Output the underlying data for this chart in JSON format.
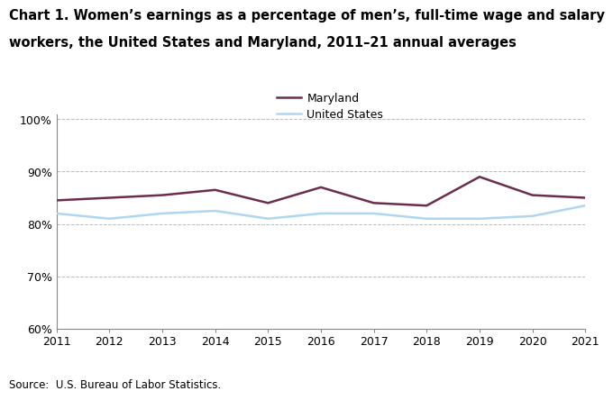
{
  "title_line1": "Chart 1. Women’s earnings as a percentage of men’s, full-time wage and salary",
  "title_line2": "workers, the United States and Maryland, 2011–21 annual averages",
  "years": [
    2011,
    2012,
    2013,
    2014,
    2015,
    2016,
    2017,
    2018,
    2019,
    2020,
    2021
  ],
  "maryland": [
    84.5,
    85.0,
    85.5,
    86.5,
    84.0,
    87.0,
    84.0,
    83.5,
    89.0,
    85.5,
    85.0
  ],
  "us": [
    82.0,
    81.0,
    82.0,
    82.5,
    81.0,
    82.0,
    82.0,
    81.0,
    81.0,
    81.5,
    83.5
  ],
  "maryland_color": "#6B2D4E",
  "us_color": "#AED6F1",
  "ylim": [
    60,
    101
  ],
  "yticks": [
    60,
    70,
    80,
    90,
    100
  ],
  "ytick_labels": [
    "60%",
    "70%",
    "80%",
    "90%",
    "100%"
  ],
  "grid_color": "#BBBBBB",
  "source_text": "Source:  U.S. Bureau of Labor Statistics.",
  "legend_maryland": "Maryland",
  "legend_us": "United States",
  "line_width": 1.8,
  "title_fontsize": 10.5,
  "tick_fontsize": 9,
  "source_fontsize": 8.5
}
